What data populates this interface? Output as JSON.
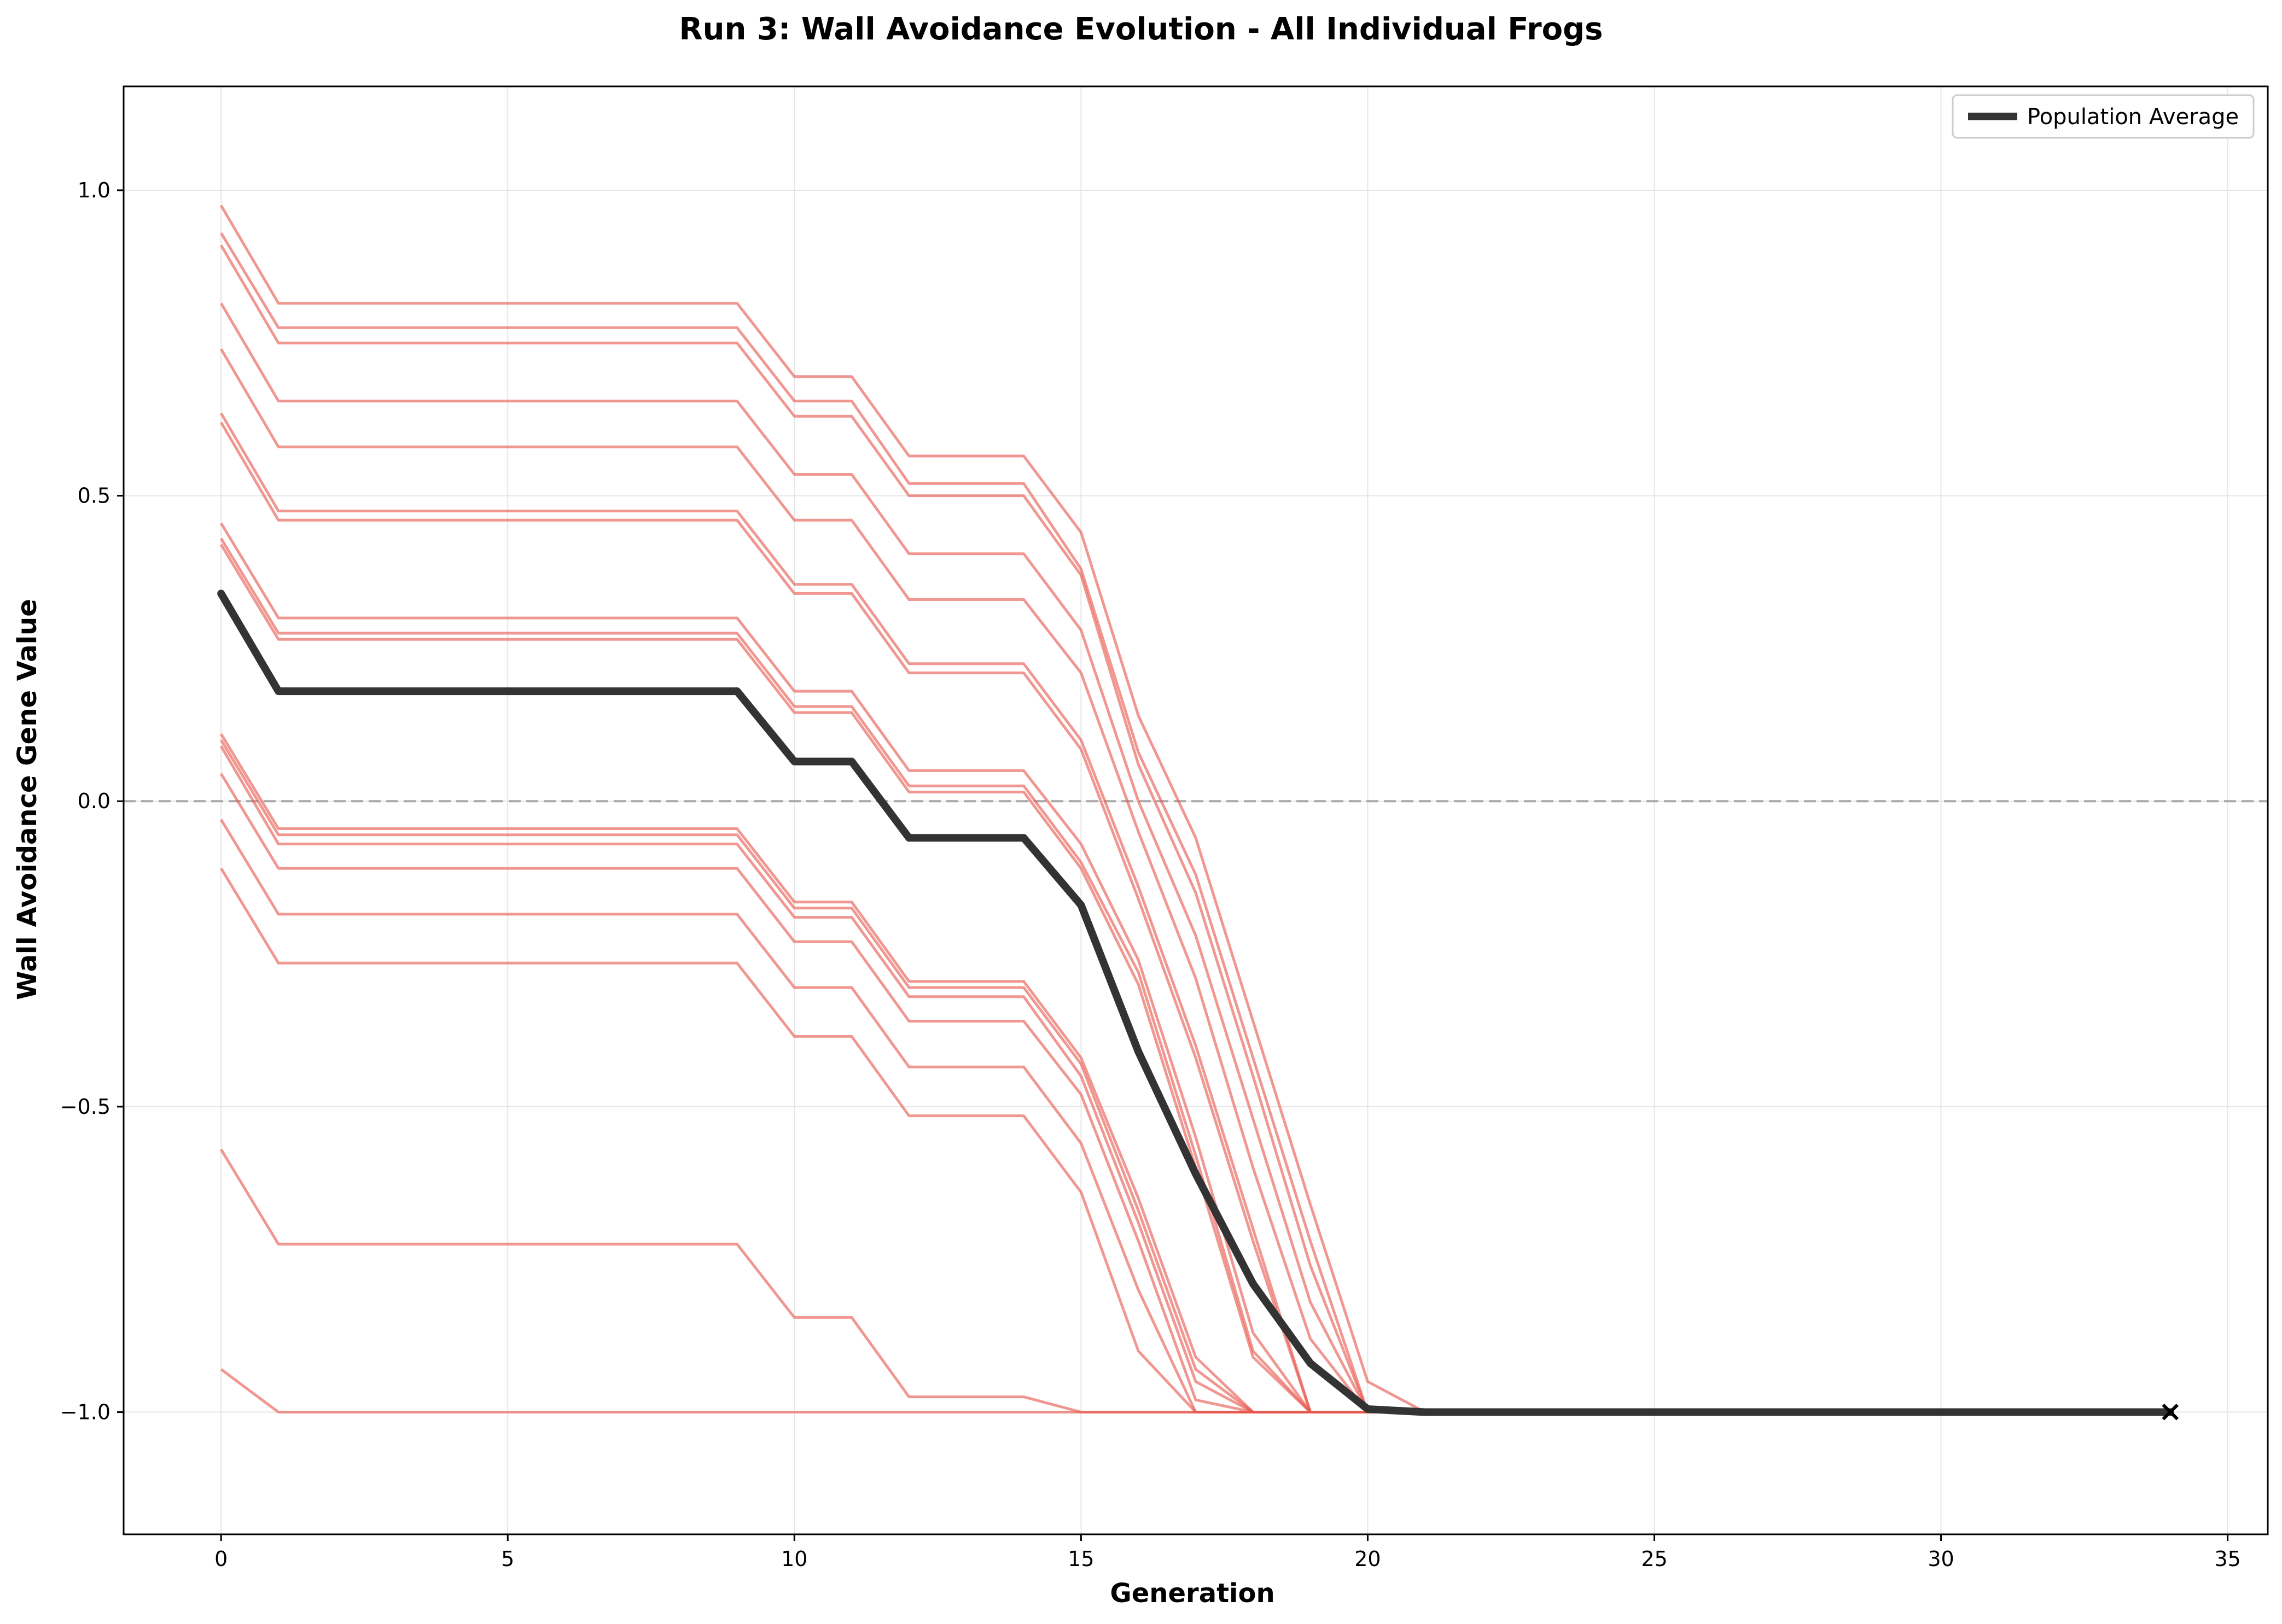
{
  "chart_data": {
    "type": "line",
    "title": "Run 3: Wall Avoidance Evolution - All Individual Frogs",
    "xlabel": "Generation",
    "ylabel": "Wall Avoidance Gene Value",
    "xlim": [
      -1.7,
      35.7
    ],
    "ylim": [
      -1.2,
      1.17
    ],
    "xticks": [
      0,
      5,
      10,
      15,
      20,
      25,
      30,
      35
    ],
    "yticks": [
      -1.0,
      -0.5,
      0.0,
      0.5,
      1.0
    ],
    "ytick_labels": [
      "−1.0",
      "−0.5",
      "0.0",
      "0.5",
      "1.0"
    ],
    "grid": true,
    "reference_line_y": 0.0,
    "legend_position": "top-right",
    "end_marker": {
      "x": 34,
      "y": -1.0,
      "symbol": "×"
    },
    "colors": {
      "individual": "#e8574d",
      "average": "#333333",
      "reference": "#a8a8a8",
      "grid": "#e6e6e6"
    },
    "x": [
      0,
      1,
      2,
      3,
      4,
      5,
      6,
      7,
      8,
      9,
      10,
      11,
      12,
      13,
      14,
      15,
      16,
      17,
      18,
      19,
      20,
      21,
      22,
      23,
      24,
      25,
      26,
      27,
      28,
      29,
      30,
      31,
      32,
      33,
      34
    ],
    "average": {
      "name": "Population Average",
      "values": [
        0.34,
        0.18,
        0.18,
        0.18,
        0.18,
        0.18,
        0.18,
        0.18,
        0.18,
        0.18,
        0.065,
        0.065,
        -0.06,
        -0.06,
        -0.06,
        -0.17,
        -0.41,
        -0.61,
        -0.79,
        -0.92,
        -0.995,
        -1.0,
        -1.0,
        -1.0,
        -1.0,
        -1.0,
        -1.0,
        -1.0,
        -1.0,
        -1.0,
        -1.0,
        -1.0,
        -1.0,
        -1.0,
        -1.0
      ]
    },
    "individuals": [
      {
        "start": 0.975,
        "plateau": [
          0.815,
          0.695,
          0.565,
          0.44
        ],
        "decline": [
          0.14,
          -0.06,
          -0.36,
          -0.66,
          -0.95
        ]
      },
      {
        "start": 0.93,
        "plateau": [
          0.775,
          0.655,
          0.52,
          0.38
        ],
        "decline": [
          0.08,
          -0.12,
          -0.42,
          -0.72,
          -1.0
        ]
      },
      {
        "start": 0.91,
        "plateau": [
          0.75,
          0.63,
          0.5,
          0.37
        ],
        "decline": [
          0.06,
          -0.15,
          -0.45,
          -0.76,
          -1.0
        ]
      },
      {
        "start": 0.815,
        "plateau": [
          0.655,
          0.535,
          0.405,
          0.28
        ],
        "decline": [
          0.0,
          -0.22,
          -0.52,
          -0.82,
          -1.0
        ]
      },
      {
        "start": 0.74,
        "plateau": [
          0.58,
          0.46,
          0.33,
          0.21
        ],
        "decline": [
          -0.05,
          -0.29,
          -0.6,
          -0.88,
          -1.0
        ]
      },
      {
        "start": 0.635,
        "plateau": [
          0.475,
          0.355,
          0.225,
          0.1
        ],
        "decline": [
          -0.14,
          -0.4,
          -0.7,
          -1.0,
          -1.0
        ]
      },
      {
        "start": 0.62,
        "plateau": [
          0.46,
          0.34,
          0.21,
          0.085
        ],
        "decline": [
          -0.16,
          -0.42,
          -0.72,
          -1.0,
          -1.0
        ]
      },
      {
        "start": 0.455,
        "plateau": [
          0.3,
          0.18,
          0.05,
          -0.07
        ],
        "decline": [
          -0.26,
          -0.55,
          -0.87,
          -1.0,
          -1.0
        ]
      },
      {
        "start": 0.43,
        "plateau": [
          0.275,
          0.155,
          0.025,
          -0.1
        ],
        "decline": [
          -0.28,
          -0.58,
          -0.9,
          -1.0,
          -1.0
        ]
      },
      {
        "start": 0.42,
        "plateau": [
          0.265,
          0.145,
          0.015,
          -0.11
        ],
        "decline": [
          -0.3,
          -0.6,
          -0.91,
          -1.0,
          -1.0
        ]
      },
      {
        "start": 0.11,
        "plateau": [
          -0.045,
          -0.165,
          -0.295,
          -0.42
        ],
        "decline": [
          -0.65,
          -0.91,
          -1.0,
          -1.0,
          -1.0
        ]
      },
      {
        "start": 0.1,
        "plateau": [
          -0.055,
          -0.175,
          -0.305,
          -0.43
        ],
        "decline": [
          -0.67,
          -0.93,
          -1.0,
          -1.0,
          -1.0
        ]
      },
      {
        "start": 0.09,
        "plateau": [
          -0.07,
          -0.19,
          -0.32,
          -0.45
        ],
        "decline": [
          -0.69,
          -0.95,
          -1.0,
          -1.0,
          -1.0
        ]
      },
      {
        "start": 0.045,
        "plateau": [
          -0.11,
          -0.23,
          -0.36,
          -0.48
        ],
        "decline": [
          -0.72,
          -0.98,
          -1.0,
          -1.0,
          -1.0
        ]
      },
      {
        "start": -0.03,
        "plateau": [
          -0.185,
          -0.305,
          -0.435,
          -0.56
        ],
        "decline": [
          -0.8,
          -1.0,
          -1.0,
          -1.0,
          -1.0
        ]
      },
      {
        "start": -0.11,
        "plateau": [
          -0.265,
          -0.385,
          -0.515,
          -0.64
        ],
        "decline": [
          -0.9,
          -1.0,
          -1.0,
          -1.0,
          -1.0
        ]
      },
      {
        "start": -0.57,
        "plateau": [
          -0.725,
          -0.845,
          -0.975,
          -1.0
        ],
        "decline": [
          -1.0,
          -1.0,
          -1.0,
          -1.0,
          -1.0
        ]
      },
      {
        "start": -0.93,
        "plateau": [
          -1.0,
          -1.0,
          -1.0,
          -1.0
        ],
        "decline": [
          -1.0,
          -1.0,
          -1.0,
          -1.0,
          -1.0
        ]
      }
    ]
  }
}
